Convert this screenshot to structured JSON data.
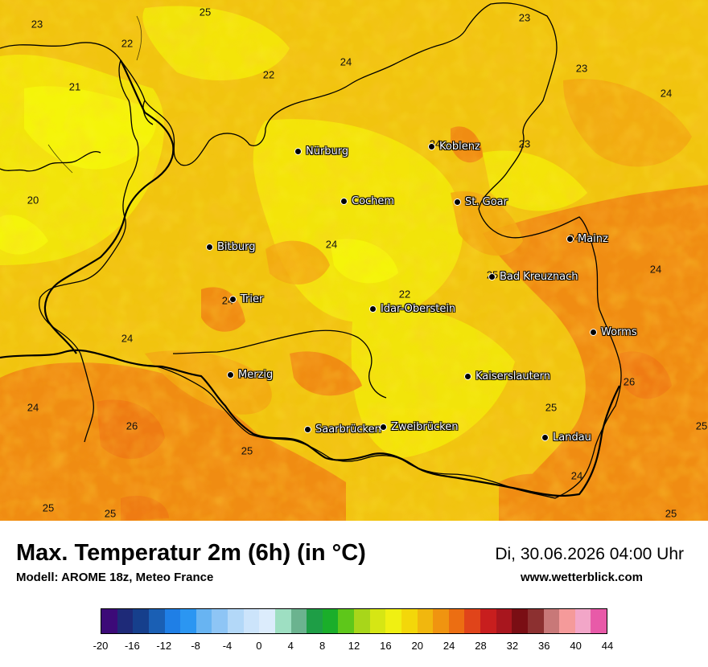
{
  "title": "Max. Temperatur 2m (6h) (in °C)",
  "model": "Modell: AROME 18z, Meteo France",
  "datetime": "Di, 30.06.2026 04:00 Uhr",
  "website": "www.wetterblick.com",
  "colors": {
    "base": "#f1c40f",
    "warm": "#f08c12",
    "cool": "#f3e10a",
    "border": "#000000"
  },
  "cities": [
    {
      "name": "Nürburg"
    },
    {
      "name": "Koblenz"
    },
    {
      "name": "Cochem"
    },
    {
      "name": "St. Goar"
    },
    {
      "name": "Mainz"
    },
    {
      "name": "Bitburg"
    },
    {
      "name": "Bad Kreuznach"
    },
    {
      "name": "Trier"
    },
    {
      "name": "Idar-Oberstein"
    },
    {
      "name": "Worms"
    },
    {
      "name": "Merzig"
    },
    {
      "name": "Kaiserslautern"
    },
    {
      "name": "Saarbrücken"
    },
    {
      "name": "Zweibrücken"
    },
    {
      "name": "Landau"
    }
  ],
  "temperature_labels": [
    "25",
    "23",
    "22",
    "23",
    "24",
    "22",
    "21",
    "23",
    "24",
    "24",
    "23",
    "20",
    "24",
    "25",
    "24",
    "22",
    "24",
    "24",
    "24",
    "26",
    "25",
    "24",
    "26",
    "25",
    "25",
    "24",
    "25",
    "25",
    "25"
  ],
  "colorbar": {
    "colors": [
      "#3c0a78",
      "#1e2a78",
      "#163f8c",
      "#1a5fb4",
      "#1f7fe6",
      "#2b96f2",
      "#68b4f2",
      "#8ec5f5",
      "#b3d8f8",
      "#cce4fb",
      "#dcecfc",
      "#9edfc2",
      "#6bb38f",
      "#1e9e46",
      "#1aae2a",
      "#5ec71a",
      "#a8d61a",
      "#d6e614",
      "#f0f012",
      "#f3d70a",
      "#f1b70e",
      "#f09410",
      "#ec6e12",
      "#e0441a",
      "#c81e1e",
      "#a8161e",
      "#7a0e14",
      "#8c3030",
      "#c87878",
      "#f59a9a",
      "#f2a6c8",
      "#e85aa8"
    ],
    "tick_labels": [
      "-20",
      "-16",
      "-12",
      "-8",
      "-4",
      "0",
      "4",
      "8",
      "12",
      "16",
      "20",
      "24",
      "28",
      "32",
      "36",
      "40",
      "44"
    ]
  }
}
